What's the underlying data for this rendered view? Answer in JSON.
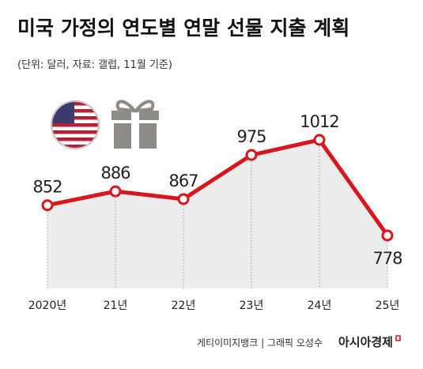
{
  "chart_data": {
    "type": "line",
    "title": "미국 가정의 연도별 연말 선물 지출 계획",
    "subtitle": "(단위: 달러, 자료: 갤럽, 11월 기준)",
    "categories": [
      "2020년",
      "21년",
      "22년",
      "23년",
      "24년",
      "25년"
    ],
    "values": [
      852,
      886,
      867,
      975,
      1012,
      778
    ],
    "color": "#d7161e",
    "area_color": "#ececec"
  },
  "footer": {
    "credit": "게티이미지뱅크 | 그래픽 오성수",
    "brand": "아시아경제"
  }
}
